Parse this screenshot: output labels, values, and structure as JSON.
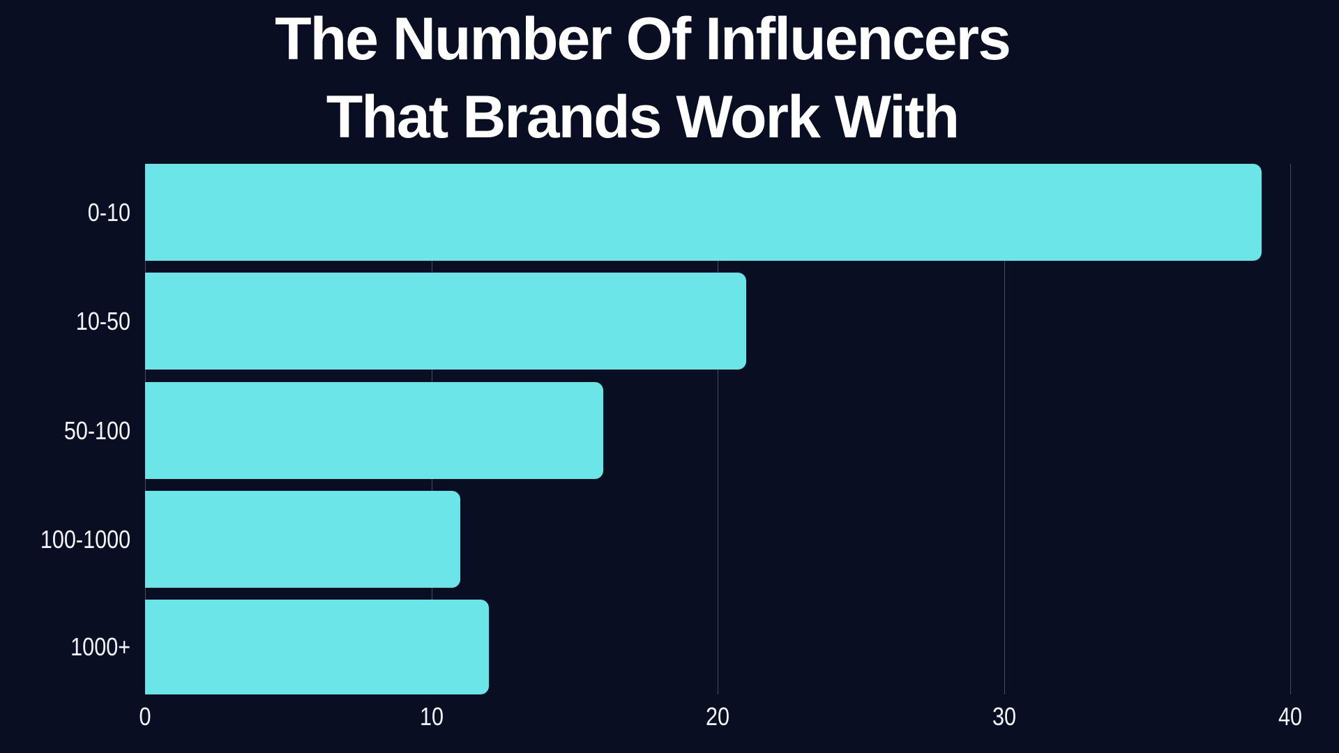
{
  "page": {
    "background_color": "#090e22"
  },
  "title": {
    "line1": "The Number Of Influencers",
    "line2": "That Brands Work With",
    "color": "#ffffff"
  },
  "chart_data": {
    "type": "bar",
    "orientation": "horizontal",
    "title": "The Number Of Influencers That Brands Work With",
    "categories": [
      "0-10",
      "10-50",
      "50-100",
      "100-1000",
      "1000+"
    ],
    "values": [
      39,
      21,
      16,
      11,
      12
    ],
    "xlabel": "",
    "ylabel": "",
    "xlim": [
      0,
      40
    ],
    "xticks": [
      0,
      10,
      20,
      30,
      40
    ],
    "grid": true,
    "legend": false,
    "bar_color": "#6ce5e8",
    "background_color": "#090e22",
    "gridline_color": "#454e66",
    "label_color": "#f2f4f8"
  }
}
